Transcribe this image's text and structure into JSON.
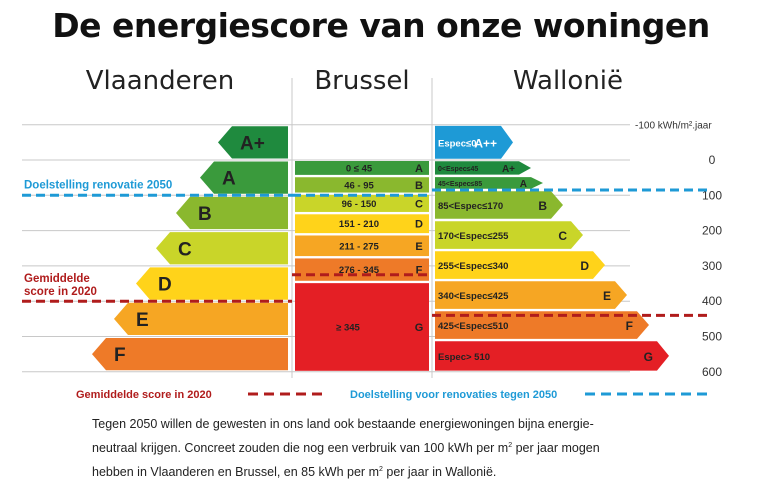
{
  "title": "De energiescore van onze woningen",
  "regions": {
    "vlaanderen": "Vlaanderen",
    "brussel": "Brussel",
    "wallonie": "Wallonië"
  },
  "chart_data": {
    "type": "bar",
    "title": "De energiescore van onze woningen",
    "unit_label": "kWh/m² jaar",
    "axis": {
      "ticks": [
        {
          "value": -100,
          "label": "-100 kWh/m².jaar"
        },
        {
          "value": 0,
          "label": "0"
        },
        {
          "value": 100,
          "label": "100"
        },
        {
          "value": 200,
          "label": "200"
        },
        {
          "value": 300,
          "label": "300"
        },
        {
          "value": 400,
          "label": "400"
        },
        {
          "value": 500,
          "label": "500"
        },
        {
          "value": 600,
          "label": "600"
        }
      ],
      "ylim": [
        -100,
        600
      ]
    },
    "vlaanderen": {
      "colors_by_label": true,
      "bars": [
        {
          "label": "A+",
          "from": -100,
          "to": 0
        },
        {
          "label": "A",
          "from": 0,
          "to": 100
        },
        {
          "label": "B",
          "from": 100,
          "to": 200
        },
        {
          "label": "C",
          "from": 200,
          "to": 300
        },
        {
          "label": "D",
          "from": 300,
          "to": 400
        },
        {
          "label": "E",
          "from": 400,
          "to": 500
        },
        {
          "label": "F",
          "from": 500,
          "to": 600
        }
      ],
      "average_2020": 400,
      "target_2050": 100
    },
    "brussel": {
      "bars": [
        {
          "label": "A",
          "range": "0 ≤ 45",
          "from": 0,
          "to": 45
        },
        {
          "label": "B",
          "range": "46 - 95",
          "from": 46,
          "to": 95
        },
        {
          "label": "C",
          "range": "96 - 150",
          "from": 96,
          "to": 150
        },
        {
          "label": "D",
          "range": "151 - 210",
          "from": 151,
          "to": 210
        },
        {
          "label": "E",
          "range": "211 - 275",
          "from": 211,
          "to": 275
        },
        {
          "label": "F",
          "range": "276 - 345",
          "from": 276,
          "to": 345
        },
        {
          "label": "G",
          "range": "≥ 345",
          "from": 346,
          "to": 600
        }
      ],
      "average_2020": 325,
      "target_2050": 100
    },
    "wallonie": {
      "bars": [
        {
          "label": "A++",
          "range": "Espec≤0",
          "from": -100,
          "to": 0
        },
        {
          "label": "A+",
          "range": "0<Espec≤45",
          "from": 0,
          "to": 45
        },
        {
          "label": "A",
          "range": "45<Espec≤85",
          "from": 45,
          "to": 85
        },
        {
          "label": "B",
          "range": "85<Espec≤170",
          "from": 85,
          "to": 170
        },
        {
          "label": "C",
          "range": "170<Espec≤255",
          "from": 170,
          "to": 255
        },
        {
          "label": "D",
          "range": "255<Espec≤340",
          "from": 255,
          "to": 340
        },
        {
          "label": "E",
          "range": "340<Espec≤425",
          "from": 340,
          "to": 425
        },
        {
          "label": "F",
          "range": "425<Espec≤510",
          "from": 425,
          "to": 510
        },
        {
          "label": "G",
          "range": "Espec> 510",
          "from": 510,
          "to": 600
        }
      ],
      "average_2020": 440,
      "target_2050": 85
    },
    "annotations": {
      "target_label": "Doelstelling renovatie 2050",
      "average_label_line1": "Gemiddelde",
      "average_label_line2": "score in 2020"
    },
    "legend": [
      {
        "label": "Gemiddelde score in 2020",
        "style": "dashed",
        "color": "#b01c1c"
      },
      {
        "label": "Doelstelling voor renovaties tegen 2050",
        "style": "dashed",
        "color": "#1e9ad6"
      }
    ],
    "colors": {
      "A++": "#1b7a3c",
      "A+": "#1f8a3e",
      "A": "#3a9a3c",
      "B": "#8ab82e",
      "C": "#c9d529",
      "D": "#ffd31a",
      "E": "#f6a623",
      "F": "#ee7a28",
      "G": "#e41f25",
      "target": "#1e9ad6",
      "average": "#b01c1c"
    }
  },
  "caption": {
    "line1": "Tegen 2050 willen de gewesten in ons land ook bestaande energiewoningen bijna energie-",
    "line2_a": "neutraal krijgen. Concreet zouden die nog een verbruik van 100 kWh per m",
    "line2_sup": "2",
    "line2_b": " per jaar mogen",
    "line3_a": "hebben in Vlaanderen en Brussel, en 85 kWh per m",
    "line3_sup": "2",
    "line3_b": " per jaar in Wallonië."
  }
}
